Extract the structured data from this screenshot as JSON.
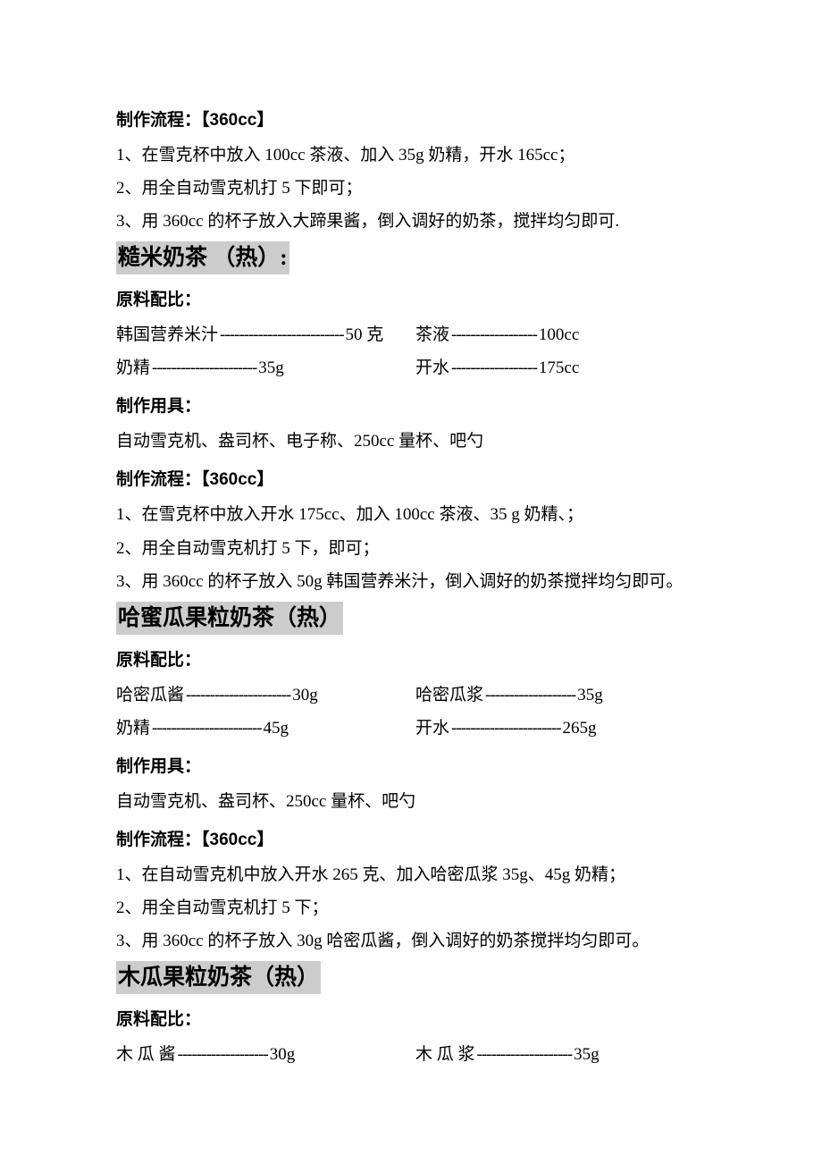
{
  "colors": {
    "background": "#ffffff",
    "text": "#000000",
    "highlight": "#cccccc"
  },
  "typography": {
    "body_font": "SimSun",
    "heading_font": "SimHei",
    "body_size_pt": 14,
    "title_size_pt": 18
  },
  "top_process": {
    "heading": "制作流程：【360cc】",
    "steps": [
      "1、在雪克杯中放入 100cc 茶液、加入 35g 奶精，开水 165cc；",
      "2、用全自动雪克机打 5 下即可；",
      "3、用 360cc 的杯子放入大蹄果酱，倒入调好的奶茶，搅拌均匀即可."
    ]
  },
  "recipes": [
    {
      "title": "糙米奶茶   （热）:",
      "ing_label": "原料配比：",
      "ingredients": [
        {
          "name": "韩国营养米汁",
          "dash": "--------------------------",
          "amount": "50 克"
        },
        {
          "name": "茶液 ",
          "dash": "------------------",
          "amount": "100cc"
        },
        {
          "name": "奶精 ",
          "dash": "---------------------- ",
          "amount": "35g"
        },
        {
          "name": "开水",
          "dash": "------------------ ",
          "amount": "175cc"
        }
      ],
      "tools_label": "制作用具：",
      "tools": "自动雪克机、盎司杯、电子称、250cc 量杯、吧勺",
      "process_label": "制作流程：【360cc】",
      "steps": [
        "1、在雪克杯中放入开水 175cc、加入 100cc 茶液、35 g 奶精、；",
        "2、用全自动雪克机打 5 下，即可；",
        "3、用 360cc 的杯子放入 50g 韩国营养米汁，倒入调好的奶茶搅拌均匀即可。"
      ]
    },
    {
      "title": "哈蜜瓜果粒奶茶（热）",
      "ing_label": "原料配比：",
      "ingredients": [
        {
          "name": "哈密瓜酱",
          "dash": "----------------------",
          "amount": "30g"
        },
        {
          "name": "哈密瓜浆 ",
          "dash": "------------------- ",
          "amount": "35g"
        },
        {
          "name": "奶精 ",
          "dash": "----------------------- ",
          "amount": "45g"
        },
        {
          "name": "开水 ",
          "dash": "----------------------- ",
          "amount": "265g"
        }
      ],
      "tools_label": "制作用具：",
      "tools": "自动雪克机、盎司杯、250cc 量杯、吧勺",
      "process_label": "制作流程：【360cc】",
      "steps": [
        "1、在自动雪克机中放入开水 265 克、加入哈密瓜浆 35g、45g 奶精；",
        "2、用全自动雪克机打 5 下；",
        "3、用 360cc 的杯子放入 30g 哈密瓜酱，倒入调好的奶茶搅拌均匀即可。"
      ]
    },
    {
      "title": "木瓜果粒奶茶（热）",
      "ing_label": "原料配比：",
      "ingredients": [
        {
          "name": "木 瓜 酱  ",
          "dash": "-------------------  ",
          "amount": "30g"
        },
        {
          "name": "木 瓜 浆  ",
          "dash": "--------------------  ",
          "amount": "35g"
        }
      ]
    }
  ]
}
